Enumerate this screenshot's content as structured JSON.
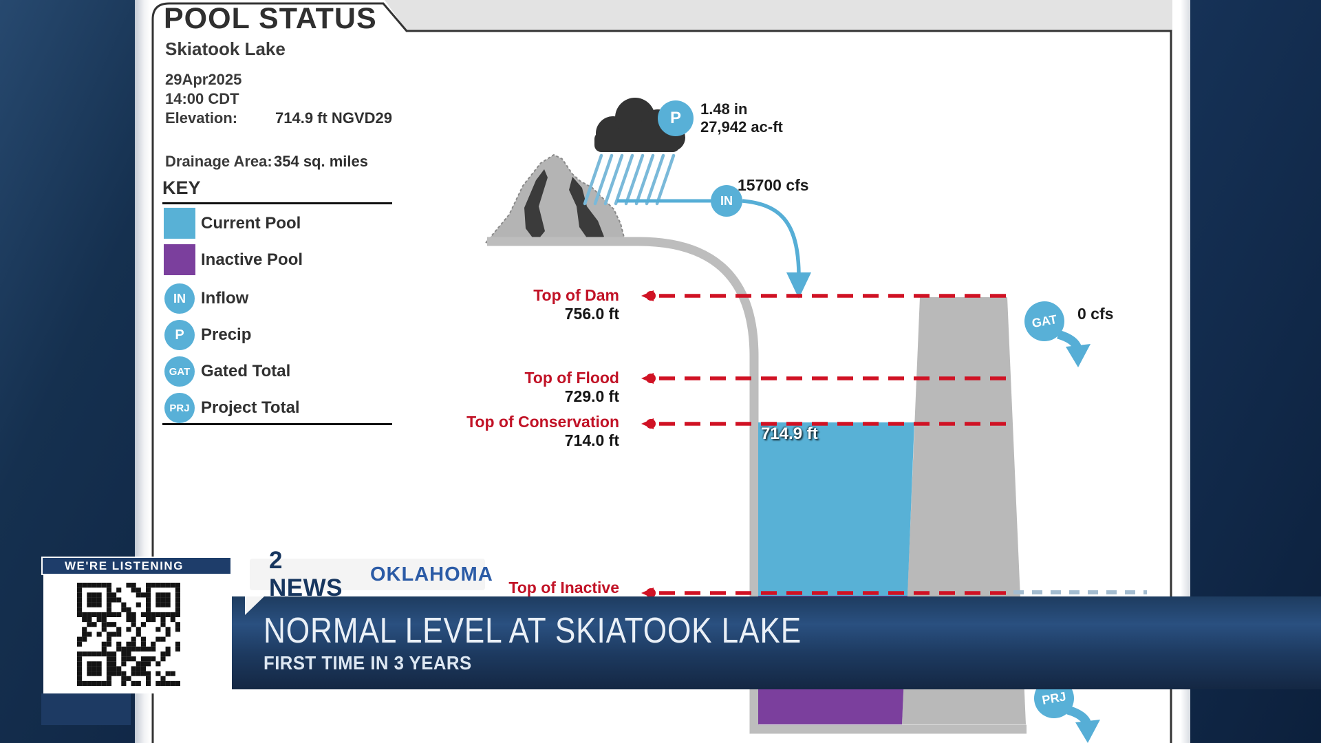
{
  "pool_status": {
    "title": "POOL STATUS",
    "lake_name": "Skiatook Lake",
    "date": "29Apr2025",
    "time": "14:00 CDT",
    "elevation_label": "Elevation:",
    "elevation_value": "714.9 ft NGVD29",
    "drainage_label": "Drainage Area:",
    "drainage_value": "354 sq. miles",
    "key": {
      "heading": "KEY",
      "items": [
        {
          "type": "swatch",
          "label": "Current Pool"
        },
        {
          "type": "swatch",
          "label": "Inactive Pool"
        },
        {
          "type": "circle",
          "abbr": "IN",
          "label": "Inflow"
        },
        {
          "type": "circle",
          "abbr": "P",
          "label": "Precip"
        },
        {
          "type": "circle",
          "abbr": "GAT",
          "label": "Gated Total"
        },
        {
          "type": "circle",
          "abbr": "PRJ",
          "label": "Project Total"
        }
      ]
    },
    "diagram": {
      "precip": {
        "abbr": "P",
        "amount_in": "1.48 in",
        "amount_acft": "27,942 ac-ft"
      },
      "inflow": {
        "abbr": "IN",
        "value": "15700 cfs"
      },
      "gated": {
        "abbr": "GAT",
        "value": "0 cfs"
      },
      "project": {
        "abbr": "PRJ"
      },
      "pool_elevation": "714.9 ft",
      "levels": [
        {
          "name": "Top of Dam",
          "value": "756.0 ft"
        },
        {
          "name": "Top of Flood",
          "value": "729.0 ft"
        },
        {
          "name": "Top of Conservation",
          "value": "714.0 ft"
        },
        {
          "name": "Top of Inactive",
          "value": ""
        }
      ]
    }
  },
  "lower_third": {
    "listening_label": "WE'RE LISTENING",
    "station": "2 NEWS",
    "region": "OKLAHOMA",
    "headline": "NORMAL LEVEL AT SKIATOOK LAKE",
    "subhead": "FIRST TIME IN 3 YEARS"
  },
  "colors": {
    "current_pool": "#58b1d6",
    "inactive_pool": "#7b3f9d",
    "flow_badge": "#58b0d7",
    "level_line_red": "#d01224",
    "level_label_red": "#c11226",
    "structure_gray": "#b9b9b9",
    "banner_navy": "#1d3a60",
    "station_navy": "#17365f",
    "region_blue": "#2b5ba6",
    "background_navy": "#0e2342"
  }
}
